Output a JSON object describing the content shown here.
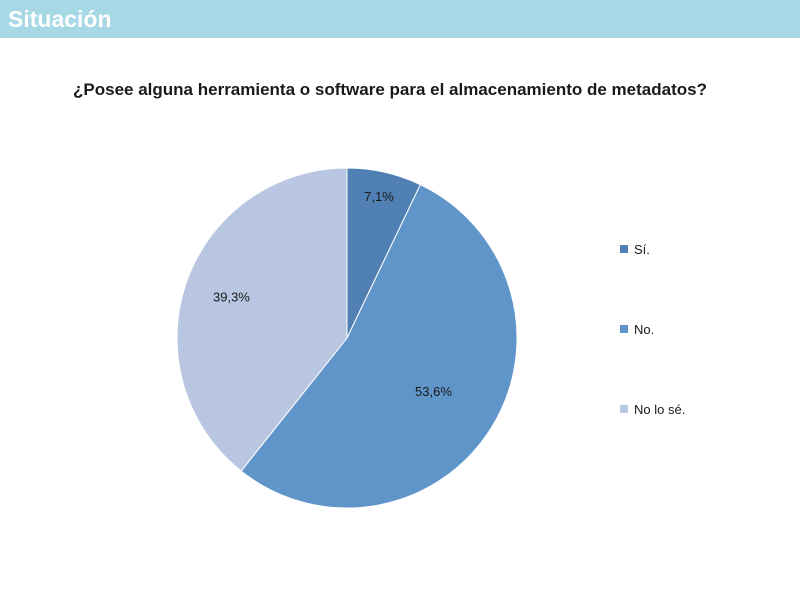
{
  "header": {
    "title": "Situación",
    "bar_color": "#a7d8e6"
  },
  "chart_data": {
    "type": "pie",
    "title": "¿Posee alguna herramienta o software para el almacenamiento de metadatos?",
    "categories": [
      "Sí.",
      "No.",
      "No lo sé."
    ],
    "values": [
      7.1,
      53.6,
      39.3
    ],
    "labels": [
      "7,1%",
      "53,6%",
      "39,3%"
    ],
    "colors": [
      "#4f7fb3",
      "#6095c9",
      "#b8c6e2"
    ],
    "legend_position": "right"
  }
}
